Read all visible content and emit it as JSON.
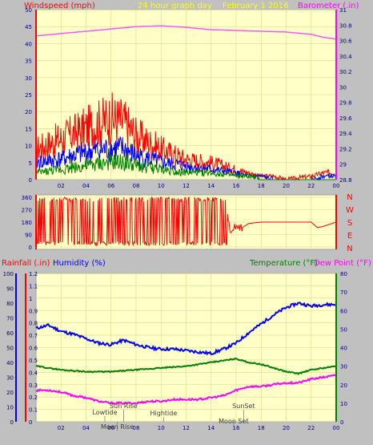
{
  "header": {
    "left_title": "Windspeed (mph)",
    "center_title": "24 hour graph day",
    "date": "February 1 2016",
    "right_title": "Barometer (.in)"
  },
  "colors": {
    "background": "#c0c0c0",
    "plot_background": "#ffffc8",
    "grid": "#d8d890",
    "axis_red": "#ff0000",
    "axis_blue": "#0000ff",
    "axis_green": "#008000",
    "axis_magenta": "#ff00ff",
    "wind_gust": "#ff0000",
    "wind_avg": "#0000ff",
    "wind_low": "#008000",
    "barometer": "#ff55ff",
    "humidity": "#0000ff",
    "temperature": "#008000",
    "dewpoint": "#ff00ff"
  },
  "chart_data": [
    {
      "type": "line",
      "title": "24 hour graph day",
      "subtitle": "February 1 2016",
      "ylabel": "Windspeed (mph)",
      "y2label": "Barometer (.in)",
      "xticks": [
        "02",
        "04",
        "06",
        "08",
        "10",
        "12",
        "14",
        "16",
        "18",
        "20",
        "22",
        "00"
      ],
      "x_range": [
        0,
        24
      ],
      "ylim": [
        0,
        50
      ],
      "y_ticks": [
        "0",
        "5",
        "10",
        "15",
        "20",
        "25",
        "30",
        "35",
        "40",
        "45",
        "50"
      ],
      "y2lim": [
        28.8,
        31
      ],
      "y2_ticks": [
        "28.8",
        "29",
        "29.2",
        "29.4",
        "29.6",
        "29.8",
        "30",
        "30.2",
        "30.4",
        "30.6",
        "30.8",
        "31"
      ],
      "grid": true,
      "series": [
        {
          "name": "Barometer (.in)",
          "axis": "right",
          "x": [
            0,
            2,
            4,
            6,
            8,
            10,
            12,
            14,
            16,
            18,
            20,
            22,
            23,
            24
          ],
          "values": [
            30.66,
            30.69,
            30.72,
            30.75,
            30.78,
            30.79,
            30.77,
            30.74,
            30.73,
            30.72,
            30.71,
            30.68,
            30.64,
            30.62
          ]
        },
        {
          "name": "",
          "axis": "left",
          "x": [
            0,
            2,
            4,
            6,
            7,
            8,
            10,
            12,
            14,
            16,
            17,
            18,
            19,
            20,
            22,
            23,
            24
          ],
          "values": [
            9,
            12,
            15,
            18,
            17,
            13,
            9,
            6,
            5,
            3,
            2,
            1,
            1,
            0,
            1,
            2,
            2
          ]
        },
        {
          "name": "",
          "axis": "left",
          "x": [
            0,
            2,
            4,
            6,
            7,
            8,
            10,
            12,
            14,
            16,
            17,
            18,
            19,
            20,
            22,
            23,
            24
          ],
          "values": [
            5,
            6,
            8,
            9,
            9,
            7,
            5,
            4,
            3,
            2,
            1,
            1,
            0,
            0,
            0,
            1,
            1
          ]
        },
        {
          "name": "",
          "axis": "left",
          "x": [
            0,
            2,
            4,
            6,
            7,
            8,
            10,
            12,
            14,
            16,
            17,
            18,
            19,
            20,
            22,
            23,
            24
          ],
          "values": [
            2,
            3,
            4,
            5,
            5,
            4,
            3,
            2,
            2,
            1,
            1,
            0,
            0,
            0,
            0,
            0,
            0
          ]
        }
      ]
    },
    {
      "type": "line",
      "ylabel": "",
      "right_labels": [
        "N",
        "W",
        "S",
        "E",
        "N"
      ],
      "xticks": [
        "02",
        "04",
        "06",
        "08",
        "10",
        "12",
        "14",
        "16",
        "18",
        "20",
        "22",
        "00"
      ],
      "x_range": [
        0,
        24
      ],
      "ylim": [
        0,
        360
      ],
      "y_ticks": [
        "0",
        "90",
        "180",
        "270",
        "360"
      ],
      "series": [
        {
          "name": "",
          "x": [
            0,
            2,
            4,
            6,
            8,
            10,
            12,
            14,
            15.3,
            15.6,
            16,
            16.5,
            17,
            18,
            20,
            22,
            22.5,
            23,
            24
          ],
          "values": [
            340,
            320,
            335,
            310,
            345,
            325,
            330,
            300,
            250,
            90,
            160,
            140,
            170,
            180,
            180,
            180,
            140,
            150,
            180
          ]
        }
      ]
    },
    {
      "type": "line",
      "ylabel": "Rainfall (.in)",
      "y2label": "Humidity (%)",
      "y3label": "Temperature (°F)",
      "y4label": "Dew Point (°F)",
      "xticks": [
        "02",
        "04",
        "06",
        "08",
        "10",
        "12",
        "14",
        "16",
        "18",
        "20",
        "22",
        "00"
      ],
      "x_range": [
        0,
        24
      ],
      "y_rain_range": [
        0,
        1.2
      ],
      "y_rain_ticks": [
        "0",
        "0.1",
        "0.2",
        "0.3",
        "0.4",
        "0.5",
        "0.6",
        "0.7",
        "0.8",
        "0.9",
        "1",
        "1.1",
        "1.2"
      ],
      "y_hum_range": [
        0,
        100
      ],
      "y_hum_ticks": [
        "0",
        "10",
        "20",
        "30",
        "40",
        "50",
        "60",
        "70",
        "80",
        "90",
        "100"
      ],
      "y_temp_range": [
        0,
        80
      ],
      "y_temp_ticks": [
        "0",
        "10",
        "20",
        "30",
        "40",
        "50",
        "60",
        "70",
        "80"
      ],
      "grid": true,
      "series": [
        {
          "name": "Humidity (%)",
          "axis": "humidity",
          "x": [
            0,
            1,
            2,
            3,
            4,
            5,
            6,
            7,
            8,
            9,
            10,
            11,
            12,
            13,
            14,
            15,
            16,
            17,
            18,
            19,
            20,
            21,
            22,
            23,
            24
          ],
          "values": [
            63,
            65,
            61,
            59,
            56,
            53,
            52,
            55,
            52,
            50,
            49,
            49,
            48,
            47,
            46,
            49,
            53,
            60,
            66,
            72,
            77,
            80,
            78,
            79,
            79
          ]
        },
        {
          "name": "Temperature (°F)",
          "axis": "temperature",
          "x": [
            0,
            2,
            4,
            6,
            8,
            10,
            12,
            14,
            15,
            16,
            17,
            18,
            19,
            20,
            21,
            22,
            23,
            24
          ],
          "values": [
            30,
            28,
            27,
            27,
            28,
            29,
            30,
            32,
            33,
            34,
            32,
            31,
            29,
            27,
            26,
            28,
            29,
            30
          ]
        },
        {
          "name": "Dew Point (°F)",
          "axis": "temperature",
          "x": [
            0,
            1,
            2,
            3,
            4,
            5,
            6,
            7,
            8,
            9,
            10,
            11,
            12,
            13,
            14,
            15,
            16,
            17,
            18,
            19,
            20,
            21,
            22,
            23,
            24
          ],
          "values": [
            17,
            17,
            16,
            14,
            13,
            11,
            10,
            10,
            10,
            11,
            11,
            12,
            12,
            12,
            13,
            14,
            17,
            19,
            19,
            20,
            21,
            21,
            23,
            24,
            25
          ]
        }
      ],
      "annotations": [
        {
          "text": "Lowtide",
          "x": 5.5
        },
        {
          "text": "Sun Rise",
          "x": 7
        },
        {
          "text": "Moon Rise",
          "x": 6.5
        },
        {
          "text": "Hightide",
          "x": 10.2
        },
        {
          "text": "SunSet",
          "x": 16.6
        },
        {
          "text": "Moon Set",
          "x": 15.8
        }
      ]
    }
  ]
}
